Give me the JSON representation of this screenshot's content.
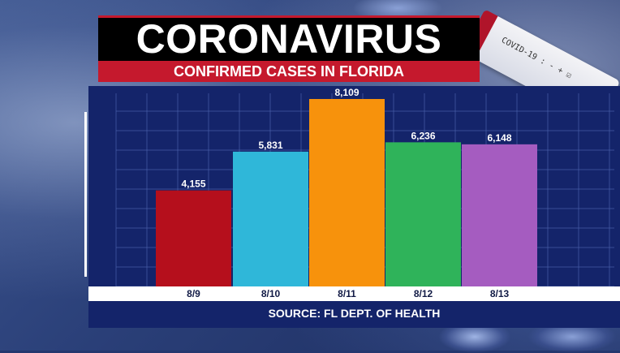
{
  "header": {
    "title": "CORONAVIRUS",
    "subtitle": "CONFIRMED CASES IN FLORIDA"
  },
  "background": {
    "test_tube_label": "COVID-19 : - + ☑"
  },
  "footer": {
    "source": "SOURCE: FL DEPT. OF HEALTH"
  },
  "colors": {
    "title_bg": "#000000",
    "subtitle_bg": "#c5192d",
    "panel_bg": "#14246a",
    "grid": "#4a5fa8"
  },
  "chart_data": {
    "type": "bar",
    "title": "CONFIRMED CASES IN FLORIDA",
    "categories": [
      "8/9",
      "8/10",
      "8/11",
      "8/12",
      "8/13"
    ],
    "values": [
      4155,
      5831,
      8109,
      6236,
      6148
    ],
    "value_labels": [
      "4,155",
      "5,831",
      "8,109",
      "6,236",
      "6,148"
    ],
    "bar_colors": [
      "#b50f1c",
      "#2fb7d9",
      "#f7920c",
      "#2fb35a",
      "#a55cc0"
    ],
    "ylim": [
      0,
      8200
    ],
    "grid": true,
    "xlabel": "",
    "ylabel": ""
  }
}
